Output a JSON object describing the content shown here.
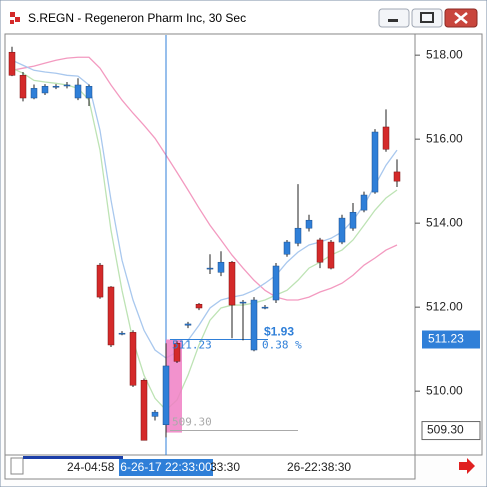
{
  "window_title": "S.REGN - Regeneron Pharm Inc, 30 Sec",
  "chart_data": {
    "type": "candlestick",
    "categories": [
      null,
      null,
      null,
      null,
      null,
      "24-04:58",
      null,
      null,
      null,
      null,
      null,
      null,
      null,
      null,
      "6-26-17 22:33:00",
      null,
      null,
      null,
      "33:30",
      null,
      null,
      null,
      null,
      null,
      null,
      "26-22:38:30",
      null,
      null,
      null,
      null,
      null,
      null,
      null,
      null,
      null,
      null
    ],
    "open": [
      518.07,
      517.52,
      516.98,
      517.1,
      517.26,
      517.29,
      516.98,
      516.98,
      513.0,
      512.48,
      511.38,
      511.4,
      510.26,
      509.4,
      509.2,
      511.14,
      511.57,
      512.07,
      512.93,
      512.83,
      513.07,
      512.12,
      510.98,
      512.0,
      512.17,
      513.26,
      513.52,
      513.88,
      513.6,
      513.55,
      513.55,
      513.88,
      514.31,
      514.74,
      516.29,
      515.22
    ],
    "high": [
      518.2,
      517.6,
      517.3,
      517.31,
      517.31,
      517.36,
      517.45,
      517.3,
      513.05,
      512.5,
      511.43,
      511.45,
      510.3,
      509.55,
      511.14,
      511.19,
      511.65,
      512.1,
      513.26,
      513.33,
      513.1,
      512.17,
      512.24,
      512.05,
      513.05,
      513.6,
      514.93,
      514.2,
      513.65,
      513.6,
      514.2,
      514.48,
      514.75,
      516.24,
      516.71,
      515.52
    ],
    "low": [
      517.5,
      516.9,
      516.95,
      517.05,
      517.19,
      517.21,
      516.93,
      516.79,
      512.2,
      511.05,
      511.33,
      510.1,
      508.83,
      509.3,
      508.9,
      510.67,
      511.5,
      511.93,
      512.79,
      512.74,
      511.26,
      511.21,
      510.95,
      511.95,
      512.1,
      513.2,
      513.45,
      513.8,
      512.93,
      512.9,
      513.5,
      513.82,
      514.26,
      514.7,
      515.7,
      514.86
    ],
    "close": [
      517.52,
      516.98,
      517.21,
      517.26,
      517.26,
      517.29,
      517.29,
      517.26,
      512.24,
      511.1,
      511.38,
      510.14,
      508.83,
      509.5,
      510.6,
      510.71,
      511.6,
      511.98,
      512.93,
      513.07,
      512.05,
      512.12,
      512.17,
      512.0,
      512.98,
      513.55,
      513.88,
      514.07,
      513.07,
      512.93,
      514.12,
      514.26,
      514.67,
      516.17,
      515.76,
      515.0
    ],
    "up_color": "#2f7fd8",
    "down_color": "#d42a2a",
    "series": [
      {
        "color": "#f39ac0",
        "values": [
          517.64,
          517.69,
          517.74,
          517.81,
          517.88,
          517.93,
          517.95,
          517.95,
          517.69,
          517.29,
          516.93,
          516.62,
          516.33,
          516.02,
          515.62,
          515.21,
          514.79,
          514.36,
          513.95,
          513.6,
          513.24,
          512.93,
          512.64,
          512.4,
          512.24,
          512.17,
          512.17,
          512.24,
          512.36,
          512.45,
          512.57,
          512.76,
          513.0,
          513.17,
          513.36,
          513.48
        ]
      },
      {
        "color": "#a9c8ee",
        "values": [
          517.88,
          517.76,
          517.64,
          517.6,
          517.57,
          517.52,
          517.5,
          517.29,
          516.21,
          514.55,
          513.12,
          512.17,
          511.45,
          510.98,
          510.79,
          510.93,
          511.21,
          511.57,
          511.98,
          512.17,
          512.24,
          512.29,
          512.4,
          512.57,
          512.76,
          513.07,
          513.31,
          513.48,
          513.55,
          513.64,
          513.79,
          514.07,
          514.43,
          514.9,
          515.38,
          515.74
        ]
      },
      {
        "color": "#bde3b4",
        "values": [
          517.69,
          517.57,
          517.4,
          517.36,
          517.33,
          517.29,
          517.21,
          516.93,
          515.74,
          513.83,
          512.4,
          511.21,
          510.38,
          509.83,
          509.55,
          509.79,
          510.38,
          511.1,
          511.69,
          511.98,
          512.05,
          512.05,
          512.1,
          512.17,
          512.29,
          512.4,
          512.64,
          512.93,
          513.07,
          513.24,
          513.36,
          513.6,
          513.95,
          514.31,
          514.6,
          514.79
        ]
      }
    ],
    "ylim": [
      508.48,
      518.48
    ],
    "yticks": [
      {
        "value": 510,
        "label": "510.00"
      },
      {
        "value": 512,
        "label": "512.00"
      },
      {
        "value": 514,
        "label": "514.00"
      },
      {
        "value": 516,
        "label": "516.00"
      },
      {
        "value": 518,
        "label": "518.00"
      }
    ],
    "crosshair_price": {
      "value": 511.23,
      "label": "511.23"
    },
    "level": {
      "value": 509.3,
      "label": "509.30"
    },
    "change": "$1.93",
    "percent": "0.38 %"
  }
}
